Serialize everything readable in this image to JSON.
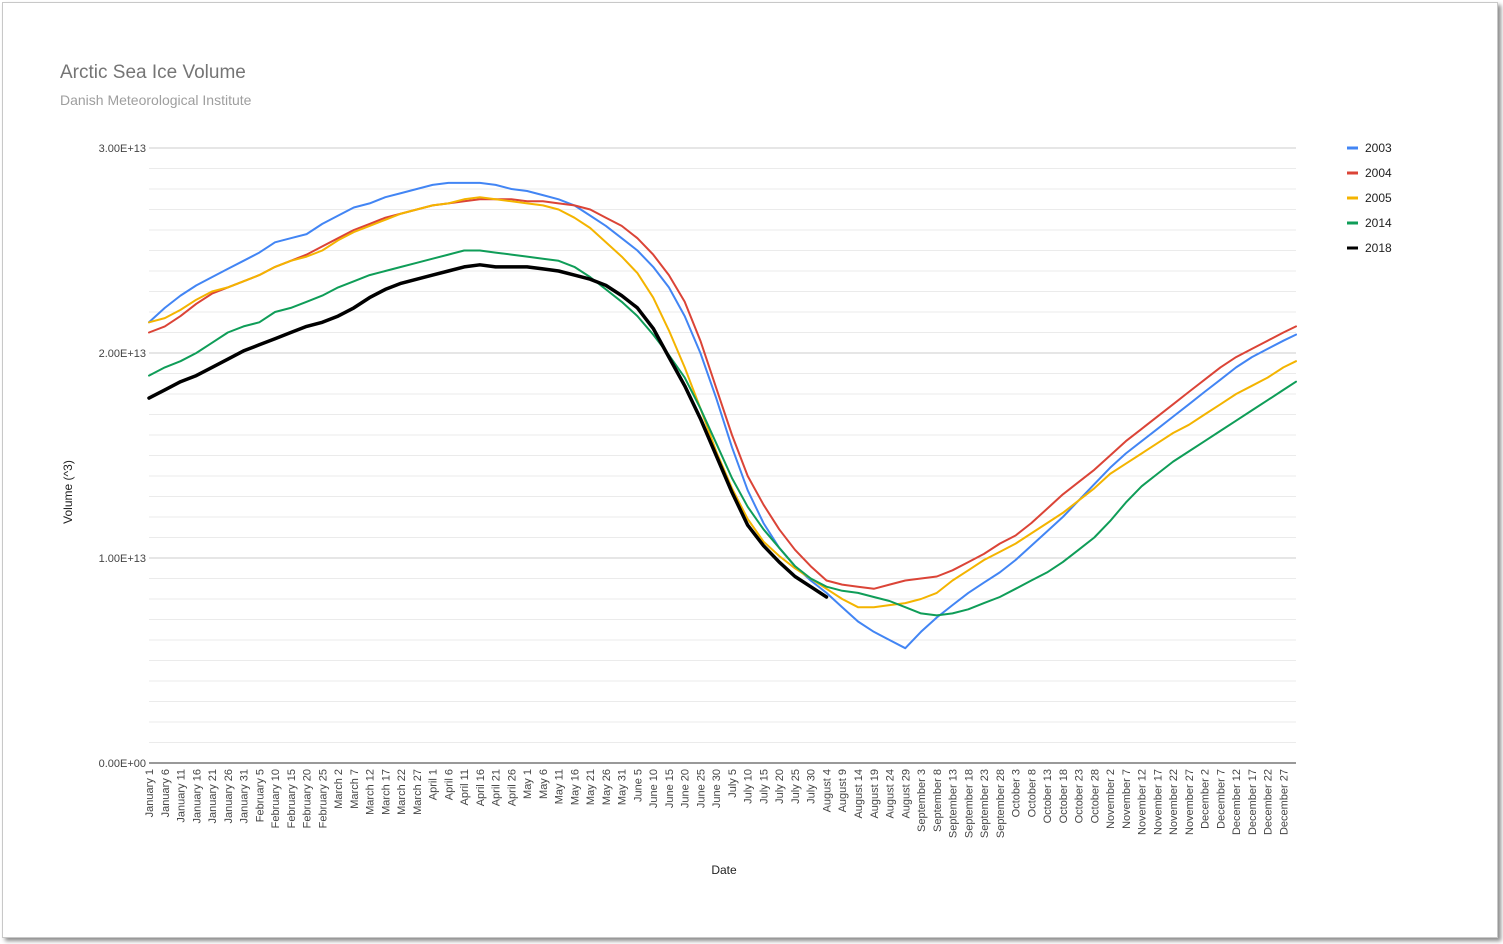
{
  "chart_data": {
    "type": "line",
    "title": "Arctic Sea Ice Volume",
    "subtitle": "Danish Meteorological Institute",
    "xlabel": "Date",
    "ylabel": "Volume (^3)",
    "ylim": [
      0,
      30000000000000
    ],
    "y_ticks": [
      "0.00E+00",
      "1.00E+13",
      "2.00E+13",
      "3.00E+13"
    ],
    "y_tick_values": [
      0,
      10000000000000,
      20000000000000,
      30000000000000
    ],
    "grid": true,
    "minor_gridlines_per_major": 10,
    "legend_position": "right",
    "x_days": [
      1,
      6,
      11,
      16,
      21,
      26,
      31,
      36,
      41,
      46,
      51,
      56,
      61,
      66,
      71,
      76,
      81,
      86,
      91,
      96,
      101,
      106,
      111,
      116,
      121,
      126,
      131,
      136,
      141,
      146,
      151,
      156,
      161,
      166,
      171,
      176,
      181,
      186,
      191,
      196,
      201,
      206,
      211,
      216,
      221,
      226,
      231,
      236,
      241,
      246,
      251,
      256,
      261,
      266,
      271,
      276,
      281,
      286,
      291,
      296,
      301,
      306,
      311,
      316,
      321,
      326,
      331,
      336,
      341,
      346,
      351,
      356,
      361,
      365
    ],
    "x_tick_labels": [
      "January 1",
      "January 6",
      "January 11",
      "January 16",
      "January 21",
      "January 26",
      "January 31",
      "February 5",
      "February 10",
      "February 15",
      "February 20",
      "February 25",
      "March 2",
      "March 7",
      "March 12",
      "March 17",
      "March 22",
      "March 27",
      "April 1",
      "April 6",
      "April 11",
      "April 16",
      "April 21",
      "April 26",
      "May 1",
      "May 6",
      "May 11",
      "May 16",
      "May 21",
      "May 26",
      "May 31",
      "June 5",
      "June 10",
      "June 15",
      "June 20",
      "June 25",
      "June 30",
      "July 5",
      "July 10",
      "July 15",
      "July 20",
      "July 25",
      "July 30",
      "August 4",
      "August 9",
      "August 14",
      "August 19",
      "August 24",
      "August 29",
      "September 3",
      "September 8",
      "September 13",
      "September 18",
      "September 23",
      "September 28",
      "October 3",
      "October 8",
      "October 13",
      "October 18",
      "October 23",
      "October 28",
      "November 2",
      "November 7",
      "November 12",
      "November 17",
      "November 22",
      "November 27",
      "December 2",
      "December 7",
      "December 12",
      "December 17",
      "December 22",
      "December 27"
    ],
    "series": [
      {
        "name": "2003",
        "color": "#4285f4",
        "width": 2,
        "values": [
          21500000000000.0,
          22200000000000.0,
          22800000000000.0,
          23300000000000.0,
          23700000000000.0,
          24100000000000.0,
          24500000000000.0,
          24900000000000.0,
          25400000000000.0,
          25600000000000.0,
          25800000000000.0,
          26300000000000.0,
          26700000000000.0,
          27100000000000.0,
          27300000000000.0,
          27600000000000.0,
          27800000000000.0,
          28000000000000.0,
          28200000000000.0,
          28300000000000.0,
          28300000000000.0,
          28300000000000.0,
          28200000000000.0,
          28000000000000.0,
          27900000000000.0,
          27700000000000.0,
          27500000000000.0,
          27200000000000.0,
          26700000000000.0,
          26200000000000.0,
          25600000000000.0,
          25000000000000.0,
          24200000000000.0,
          23200000000000.0,
          21800000000000.0,
          20000000000000.0,
          17800000000000.0,
          15400000000000.0,
          13300000000000.0,
          11700000000000.0,
          10500000000000.0,
          9600000000000.0,
          8900000000000.0,
          8300000000000.0,
          7600000000000.0,
          6900000000000.0,
          6400000000000.0,
          6000000000000.0,
          5600000000000.0,
          6400000000000.0,
          7100000000000.0,
          7700000000000.0,
          8300000000000.0,
          8800000000000.0,
          9300000000000.0,
          9900000000000.0,
          10600000000000.0,
          11300000000000.0,
          12000000000000.0,
          12800000000000.0,
          13600000000000.0,
          14400000000000.0,
          15100000000000.0,
          15700000000000.0,
          16300000000000.0,
          16900000000000.0,
          17500000000000.0,
          18100000000000.0,
          18700000000000.0,
          19300000000000.0,
          19800000000000.0,
          20200000000000.0,
          20600000000000.0,
          20900000000000.0
        ]
      },
      {
        "name": "2004",
        "color": "#db4437",
        "width": 2,
        "values": [
          21000000000000.0,
          21300000000000.0,
          21800000000000.0,
          22400000000000.0,
          22900000000000.0,
          23200000000000.0,
          23500000000000.0,
          23800000000000.0,
          24200000000000.0,
          24500000000000.0,
          24800000000000.0,
          25200000000000.0,
          25600000000000.0,
          26000000000000.0,
          26300000000000.0,
          26600000000000.0,
          26800000000000.0,
          27000000000000.0,
          27200000000000.0,
          27300000000000.0,
          27400000000000.0,
          27500000000000.0,
          27500000000000.0,
          27500000000000.0,
          27400000000000.0,
          27400000000000.0,
          27300000000000.0,
          27200000000000.0,
          27000000000000.0,
          26600000000000.0,
          26200000000000.0,
          25600000000000.0,
          24800000000000.0,
          23800000000000.0,
          22500000000000.0,
          20600000000000.0,
          18300000000000.0,
          16000000000000.0,
          14000000000000.0,
          12600000000000.0,
          11400000000000.0,
          10400000000000.0,
          9600000000000.0,
          8900000000000.0,
          8700000000000.0,
          8600000000000.0,
          8500000000000.0,
          8700000000000.0,
          8900000000000.0,
          9000000000000.0,
          9100000000000.0,
          9400000000000.0,
          9800000000000.0,
          10200000000000.0,
          10700000000000.0,
          11100000000000.0,
          11700000000000.0,
          12400000000000.0,
          13100000000000.0,
          13700000000000.0,
          14300000000000.0,
          15000000000000.0,
          15700000000000.0,
          16300000000000.0,
          16900000000000.0,
          17500000000000.0,
          18100000000000.0,
          18700000000000.0,
          19300000000000.0,
          19800000000000.0,
          20200000000000.0,
          20600000000000.0,
          21000000000000.0,
          21300000000000.0
        ]
      },
      {
        "name": "2005",
        "color": "#f4b400",
        "width": 2,
        "values": [
          21500000000000.0,
          21700000000000.0,
          22100000000000.0,
          22600000000000.0,
          23000000000000.0,
          23200000000000.0,
          23500000000000.0,
          23800000000000.0,
          24200000000000.0,
          24500000000000.0,
          24700000000000.0,
          25000000000000.0,
          25500000000000.0,
          25900000000000.0,
          26200000000000.0,
          26500000000000.0,
          26800000000000.0,
          27000000000000.0,
          27200000000000.0,
          27300000000000.0,
          27500000000000.0,
          27600000000000.0,
          27500000000000.0,
          27400000000000.0,
          27300000000000.0,
          27200000000000.0,
          27000000000000.0,
          26600000000000.0,
          26100000000000.0,
          25400000000000.0,
          24700000000000.0,
          23900000000000.0,
          22700000000000.0,
          21100000000000.0,
          19300000000000.0,
          17300000000000.0,
          15200000000000.0,
          13400000000000.0,
          11900000000000.0,
          10800000000000.0,
          10100000000000.0,
          9500000000000.0,
          9000000000000.0,
          8500000000000.0,
          8000000000000.0,
          7600000000000.0,
          7600000000000.0,
          7700000000000.0,
          7800000000000.0,
          8000000000000.0,
          8300000000000.0,
          8900000000000.0,
          9400000000000.0,
          9900000000000.0,
          10300000000000.0,
          10700000000000.0,
          11200000000000.0,
          11700000000000.0,
          12200000000000.0,
          12800000000000.0,
          13400000000000.0,
          14100000000000.0,
          14600000000000.0,
          15100000000000.0,
          15600000000000.0,
          16100000000000.0,
          16500000000000.0,
          17000000000000.0,
          17500000000000.0,
          18000000000000.0,
          18400000000000.0,
          18800000000000.0,
          19300000000000.0,
          19600000000000.0
        ]
      },
      {
        "name": "2014",
        "color": "#0f9d58",
        "width": 2,
        "values": [
          18900000000000.0,
          19300000000000.0,
          19600000000000.0,
          20000000000000.0,
          20500000000000.0,
          21000000000000.0,
          21300000000000.0,
          21500000000000.0,
          22000000000000.0,
          22200000000000.0,
          22500000000000.0,
          22800000000000.0,
          23200000000000.0,
          23500000000000.0,
          23800000000000.0,
          24000000000000.0,
          24200000000000.0,
          24400000000000.0,
          24600000000000.0,
          24800000000000.0,
          25000000000000.0,
          25000000000000.0,
          24900000000000.0,
          24800000000000.0,
          24700000000000.0,
          24600000000000.0,
          24500000000000.0,
          24200000000000.0,
          23700000000000.0,
          23100000000000.0,
          22500000000000.0,
          21800000000000.0,
          20900000000000.0,
          19900000000000.0,
          18800000000000.0,
          17300000000000.0,
          15600000000000.0,
          13900000000000.0,
          12500000000000.0,
          11400000000000.0,
          10500000000000.0,
          9600000000000.0,
          9000000000000.0,
          8600000000000.0,
          8400000000000.0,
          8300000000000.0,
          8100000000000.0,
          7900000000000.0,
          7600000000000.0,
          7300000000000.0,
          7200000000000.0,
          7300000000000.0,
          7500000000000.0,
          7800000000000.0,
          8100000000000.0,
          8500000000000.0,
          8900000000000.0,
          9300000000000.0,
          9800000000000.0,
          10400000000000.0,
          11000000000000.0,
          11800000000000.0,
          12700000000000.0,
          13500000000000.0,
          14100000000000.0,
          14700000000000.0,
          15200000000000.0,
          15700000000000.0,
          16200000000000.0,
          16700000000000.0,
          17200000000000.0,
          17700000000000.0,
          18200000000000.0,
          18600000000000.0
        ]
      },
      {
        "name": "2018",
        "color": "#000000",
        "width": 3.5,
        "values": [
          17800000000000.0,
          18200000000000.0,
          18600000000000.0,
          18900000000000.0,
          19300000000000.0,
          19700000000000.0,
          20100000000000.0,
          20400000000000.0,
          20700000000000.0,
          21000000000000.0,
          21300000000000.0,
          21500000000000.0,
          21800000000000.0,
          22200000000000.0,
          22700000000000.0,
          23100000000000.0,
          23400000000000.0,
          23600000000000.0,
          23800000000000.0,
          24000000000000.0,
          24200000000000.0,
          24300000000000.0,
          24200000000000.0,
          24200000000000.0,
          24200000000000.0,
          24100000000000.0,
          24000000000000.0,
          23800000000000.0,
          23600000000000.0,
          23300000000000.0,
          22800000000000.0,
          22200000000000.0,
          21200000000000.0,
          19800000000000.0,
          18400000000000.0,
          16800000000000.0,
          15000000000000.0,
          13200000000000.0,
          11600000000000.0,
          10600000000000.0,
          9800000000000.0,
          9100000000000.0,
          8600000000000.0,
          8100000000000.0
        ]
      }
    ]
  }
}
